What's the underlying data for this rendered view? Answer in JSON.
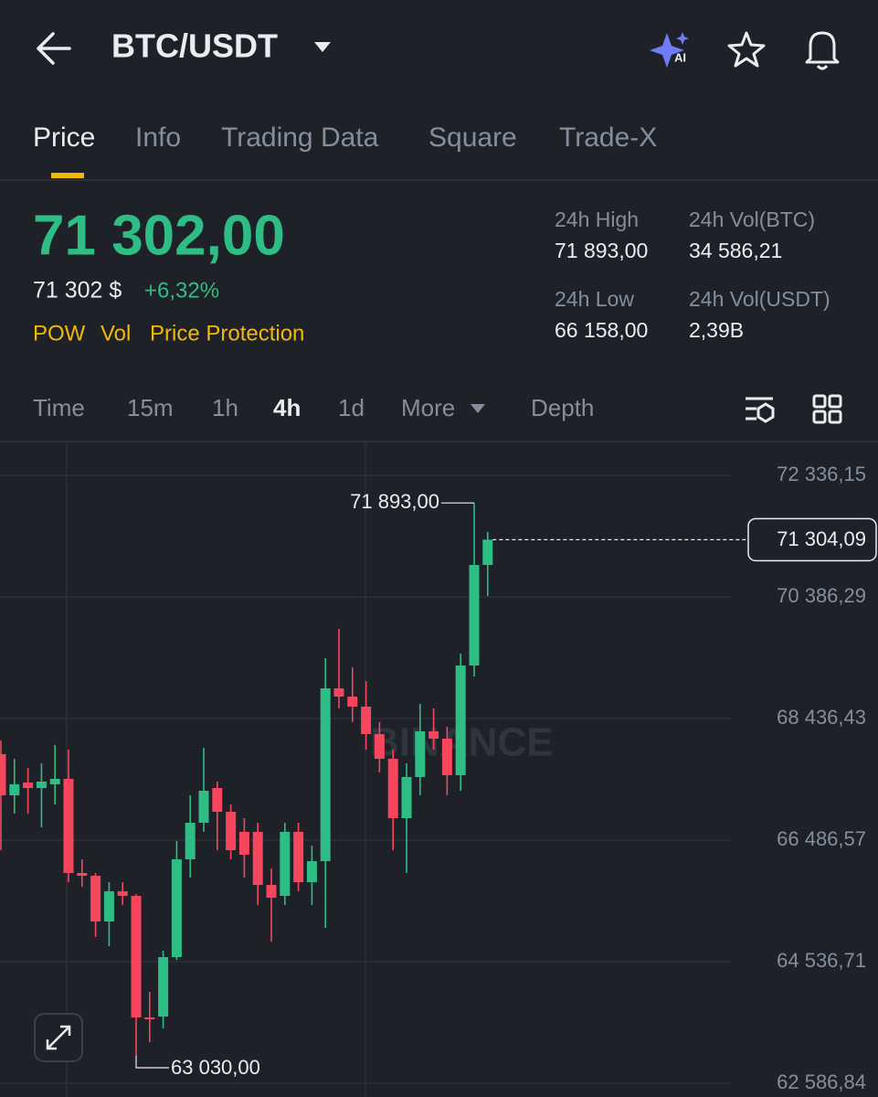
{
  "header": {
    "title": "BTC/USDT"
  },
  "tabs": {
    "items": [
      "Price",
      "Info",
      "Trading Data",
      "Square",
      "Trade-X"
    ],
    "active": "Price"
  },
  "ticker": {
    "price": "71 302,00",
    "fiat": "71 302 $",
    "change": "+6,32%",
    "tags": [
      "POW",
      "Vol",
      "Price Protection"
    ],
    "stats": [
      {
        "label": "24h High",
        "value": "71 893,00"
      },
      {
        "label": "24h Vol(BTC)",
        "value": "34 586,21"
      },
      {
        "label": "24h Low",
        "value": "66 158,00"
      },
      {
        "label": "24h Vol(USDT)",
        "value": "2,39B"
      }
    ]
  },
  "intervals": {
    "items": [
      "Time",
      "15m",
      "1h",
      "4h",
      "1d",
      "More",
      "Depth"
    ],
    "active": "4h"
  },
  "chart_data": {
    "type": "candlestick",
    "watermark": "BINANCE",
    "up_color": "#2ebd85",
    "down_color": "#f6465d",
    "open": [
      67865,
      67205,
      67410,
      67322,
      67381,
      67469,
      65959,
      65915,
      65182,
      65666,
      65592,
      63643,
      63657,
      64610,
      66179,
      66765,
      67322,
      66941,
      66619,
      66619,
      65768,
      65592,
      66619,
      65812,
      66149,
      68920,
      68788,
      68627,
      68187,
      67791,
      66838,
      67498,
      68231,
      68114,
      67528,
      69287,
      70899
    ],
    "high": [
      68085,
      67791,
      67645,
      67718,
      68011,
      67938,
      66179,
      65959,
      65812,
      65812,
      65622,
      64053,
      64713,
      66472,
      67205,
      67967,
      67425,
      67058,
      66838,
      66765,
      66032,
      66765,
      66765,
      66399,
      69404,
      69873,
      69257,
      69037,
      68378,
      67938,
      67718,
      68671,
      68598,
      68304,
      69477,
      71893,
      71427
    ],
    "low": [
      66325,
      66912,
      66912,
      66692,
      67058,
      65812,
      65739,
      64933,
      64786,
      65446,
      63030,
      63247,
      63467,
      64566,
      65886,
      66619,
      66325,
      66179,
      65886,
      65446,
      64859,
      65446,
      65666,
      65446,
      65079,
      68598,
      68378,
      67938,
      67571,
      66325,
      65959,
      67205,
      67938,
      67205,
      67278,
      69111,
      70401
    ],
    "close": [
      67205,
      67381,
      67322,
      67425,
      67469,
      65959,
      65915,
      65182,
      65666,
      65592,
      63643,
      63613,
      64610,
      66179,
      66765,
      67278,
      66941,
      66325,
      66252,
      65768,
      65563,
      66619,
      65812,
      66149,
      68920,
      68788,
      68627,
      68187,
      67791,
      66838,
      67498,
      68231,
      68114,
      67528,
      69287,
      70899,
      71304.09
    ],
    "ylim": [
      62367,
      72878
    ],
    "yticks": [
      {
        "value": 72336.15,
        "label": "72 336,15"
      },
      {
        "value": 70386.29,
        "label": "70 386,29"
      },
      {
        "value": 68436.43,
        "label": "68 436,43"
      },
      {
        "value": 66486.57,
        "label": "66 486,57"
      },
      {
        "value": 64536.71,
        "label": "64 536,71"
      },
      {
        "value": 62586.84,
        "label": "62 586,84"
      }
    ],
    "grid": true,
    "annotations": [
      {
        "value": 71893,
        "label": "71 893,00",
        "of": "high"
      },
      {
        "value": 63030,
        "label": "63 030,00",
        "of": "low"
      }
    ],
    "last_price": {
      "value": 71304.09,
      "label": "71 304,09"
    }
  }
}
